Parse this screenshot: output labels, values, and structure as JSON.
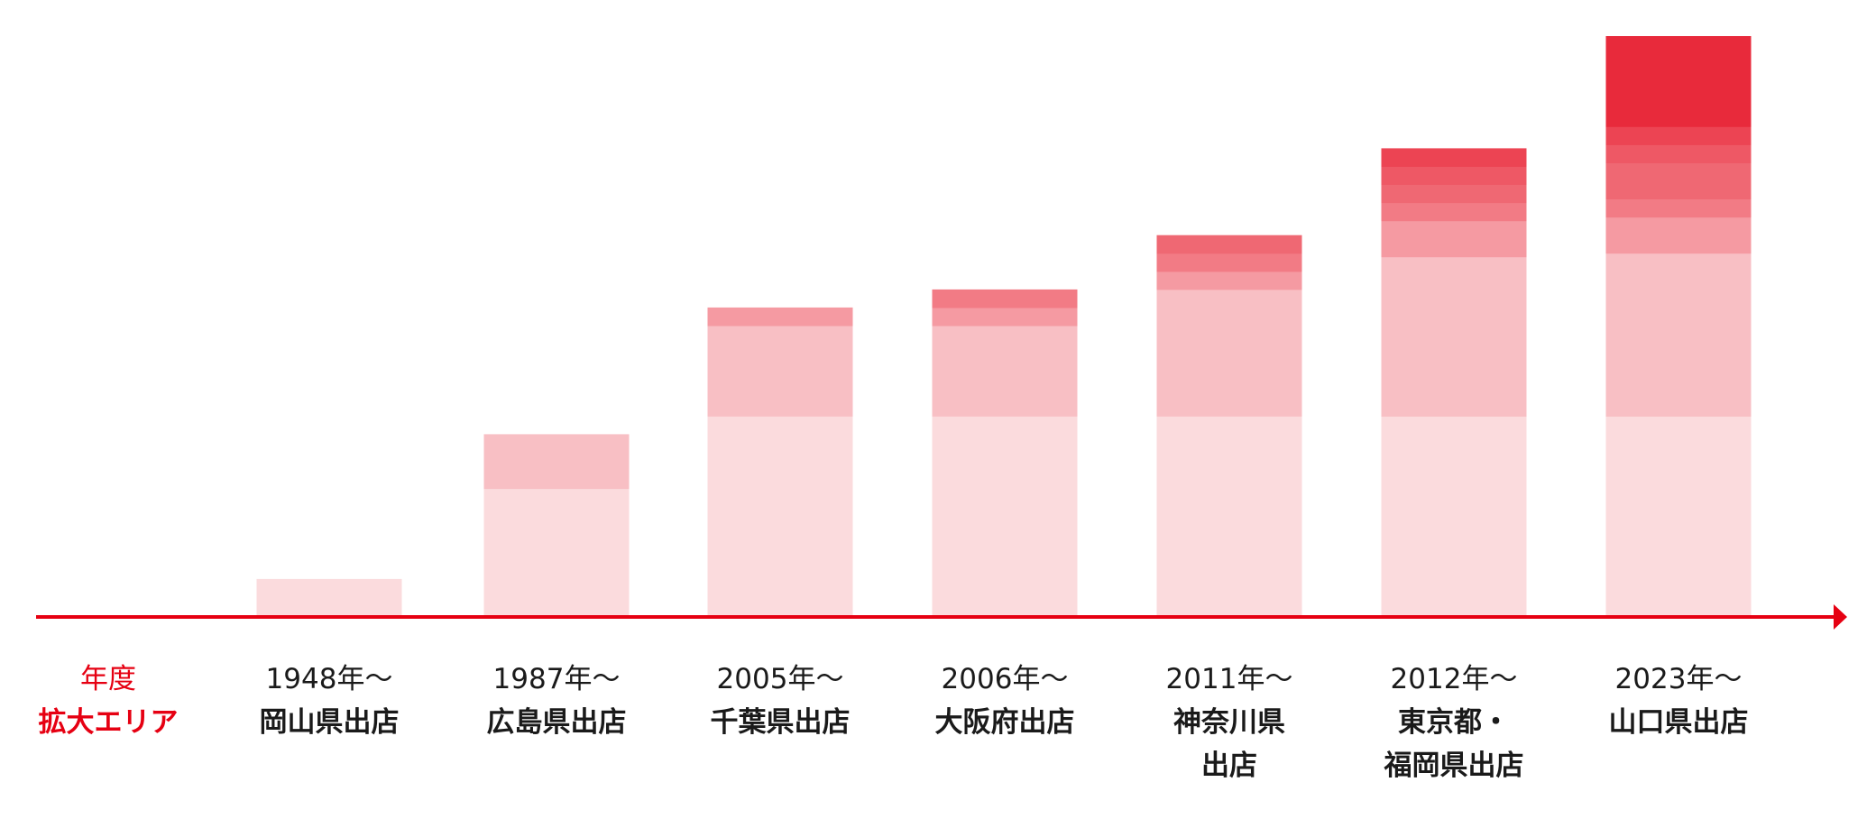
{
  "header": {
    "year_label": "年度",
    "area_label": "拡大エリア"
  },
  "colors": {
    "axis": "#e60012",
    "segments": [
      "#fbdbdd",
      "#f8bfc4",
      "#f59aa2",
      "#f27b85",
      "#ef6873",
      "#ee5865",
      "#ec4453",
      "#e82a3b",
      "#e60012"
    ]
  },
  "chart_data": {
    "type": "bar",
    "stacked": true,
    "legend": "none",
    "grid": false,
    "ylim": [
      0,
      16
    ],
    "bars": [
      {
        "year": "1948年〜",
        "area": [
          "岡山県出店"
        ],
        "segments": [
          1
        ]
      },
      {
        "year": "1987年〜",
        "area": [
          "広島県出店"
        ],
        "segments": [
          3.5,
          1.5
        ]
      },
      {
        "year": "2005年〜",
        "area": [
          "千葉県出店"
        ],
        "segments": [
          5.5,
          2.5,
          0.5
        ]
      },
      {
        "year": "2006年〜",
        "area": [
          "大阪府出店"
        ],
        "segments": [
          5.5,
          2.5,
          0.5,
          0.5
        ]
      },
      {
        "year": "2011年〜",
        "area": [
          "神奈川県",
          "出店"
        ],
        "segments": [
          5.5,
          3.5,
          0.5,
          0.5,
          0.5
        ]
      },
      {
        "year": "2012年〜",
        "area": [
          "東京都・",
          "福岡県出店"
        ],
        "segments": [
          5.5,
          4.4,
          1,
          0.5,
          0.5,
          0.5,
          0.5
        ]
      },
      {
        "year": "2023年〜",
        "area": [
          "山口県出店"
        ],
        "segments": [
          5.5,
          4.5,
          1,
          0.5,
          1,
          0.5,
          0.5,
          2.5
        ]
      }
    ]
  }
}
